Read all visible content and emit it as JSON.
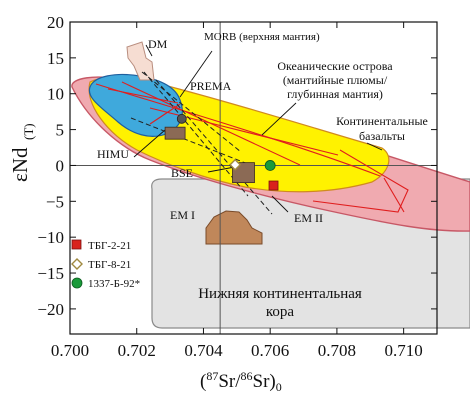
{
  "chart_data": {
    "type": "scatter",
    "title": "",
    "xlabel_parts": [
      "(",
      "87",
      "Sr/",
      "86",
      "Sr)",
      "0"
    ],
    "ylabel_parts": [
      "εNd",
      "(T)"
    ],
    "xlim": [
      0.7,
      0.711
    ],
    "ylim": [
      -23.5,
      20
    ],
    "x_ticks": [
      "0.700",
      "0.702",
      "0.704",
      "0.706",
      "0.708",
      "0.710"
    ],
    "y_ticks": [
      "20",
      "15",
      "10",
      "5",
      "0",
      "−5",
      "−10",
      "−15",
      "−20"
    ],
    "x_tick_values": [
      0.7,
      0.702,
      0.704,
      0.706,
      0.708,
      0.71
    ],
    "y_tick_values": [
      20,
      15,
      10,
      5,
      0,
      -5,
      -10,
      -15,
      -20
    ],
    "reference_lines": {
      "x": 0.7045,
      "y": 0
    },
    "fields": [
      {
        "name": "Нижняя континентальная кора",
        "lines": [
          "Нижняя континентальная",
          "кора"
        ],
        "color": "#e3e3e3"
      },
      {
        "name": "Континентальные базальты",
        "lines": [
          "Континентальные",
          "базальты"
        ],
        "color": "#f0aab0"
      },
      {
        "name": "Океанические острова (мантийные плюмы/глубинная мантия)",
        "lines": [
          "Океанические острова",
          "(мантийные плюмы/",
          "глубинная мантия)"
        ],
        "color": "#fff200"
      },
      {
        "name": "MORB (верхняя мантия)",
        "lines": [
          "MORB (верхняя мантия)"
        ],
        "color": "#3fa9dc"
      },
      {
        "name": "DM",
        "lines": [
          "DM"
        ],
        "color": "#f6ddd2"
      },
      {
        "name": "EM I",
        "lines": [
          "EM I"
        ],
        "color": "#c0875a"
      }
    ],
    "end_members": [
      {
        "name": "PREMA",
        "x": 0.70335,
        "y": 6.5,
        "color": "#555555"
      },
      {
        "name": "HIMU",
        "x": 0.70315,
        "y": 4.5,
        "color": "#8b6a55"
      },
      {
        "name": "BSE",
        "x": 0.7052,
        "y": -1.0,
        "color": "#8b6a55"
      },
      {
        "name": "EM II",
        "lines": [
          "EM II"
        ]
      }
    ],
    "samples": [
      {
        "name": "ТБГ-2-21",
        "x": 0.7061,
        "y": -2.8,
        "marker": "square",
        "color": "#d9221c"
      },
      {
        "name": "ТБГ-8-21",
        "x": 0.70495,
        "y": 0.1,
        "marker": "diamond",
        "color": "#ffffff"
      },
      {
        "name": "1337-Б-92*",
        "x": 0.706,
        "y": 0.0,
        "marker": "circle",
        "color": "#1a9a3a"
      }
    ],
    "legend_position": "left"
  }
}
